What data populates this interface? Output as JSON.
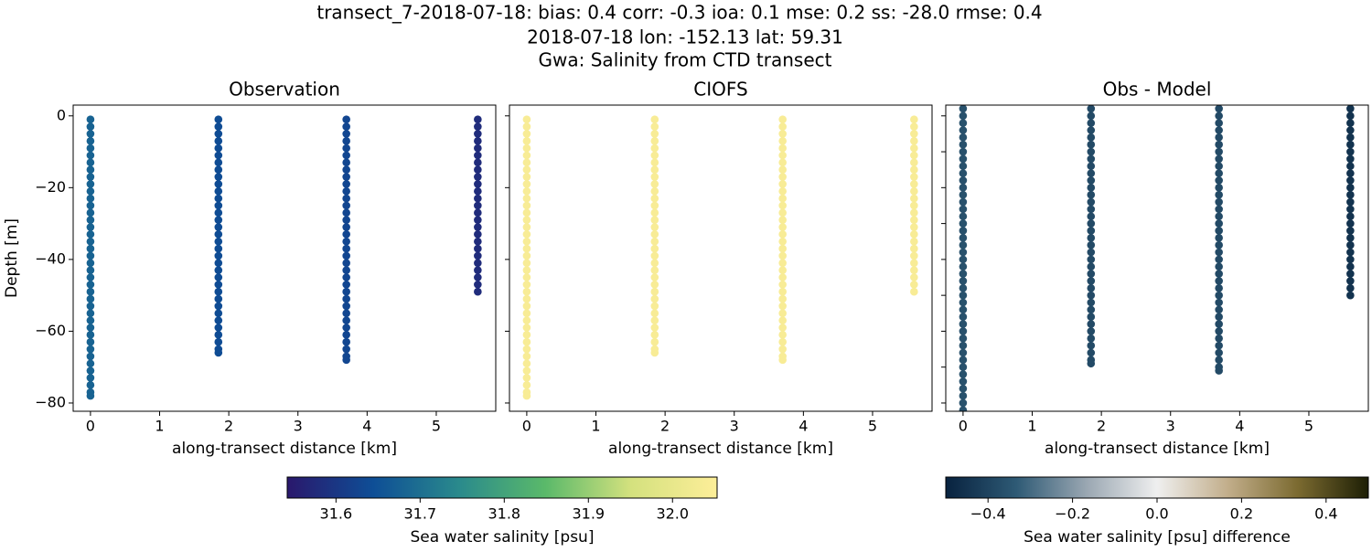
{
  "header": {
    "lines": [
      "transect_7-2018-07-18: bias: 0.4  corr: -0.3  ioa: 0.1  mse: 0.2  ss: -28.0  rmse: 0.4",
      "2018-07-18 lon: -152.13 lat: 59.31",
      "Gwa: Salinity from CTD transect"
    ]
  },
  "chart_data": [
    {
      "type": "scatter",
      "title": "Observation",
      "xlabel": "along-transect distance [km]",
      "ylabel": "Depth [m]",
      "xlim": [
        -0.25,
        5.86
      ],
      "ylim": [
        -82.3,
        3
      ],
      "xticks": [
        0,
        1,
        2,
        3,
        4,
        5
      ],
      "yticks": [
        {
          "value": -80,
          "label": "−80"
        },
        {
          "value": -60,
          "label": "−60"
        },
        {
          "value": -40,
          "label": "−40"
        },
        {
          "value": -20,
          "label": "−20"
        },
        0
      ],
      "ytick_labels": true,
      "clim": [
        31.542,
        32.053
      ],
      "colors": [
        "#2a186c",
        "#0e4e96",
        "#2a8a8c",
        "#5ab96a",
        "#d4e17e",
        "#fdee99"
      ],
      "series": [
        {
          "x": 0,
          "value": 31.68,
          "y": [
            -1,
            -3,
            -5,
            -7,
            -9,
            -11,
            -13,
            -15,
            -17,
            -19,
            -21,
            -23,
            -25,
            -27,
            -29,
            -31,
            -33,
            -35,
            -37,
            -39,
            -41,
            -43,
            -45,
            -47,
            -49,
            -51,
            -53,
            -55,
            -57,
            -59,
            -61,
            -63,
            -65,
            -67,
            -69,
            -71,
            -73,
            -75,
            -77,
            -78
          ]
        },
        {
          "x": 1.85,
          "value": 31.64,
          "y": [
            -1,
            -3,
            -5,
            -7,
            -9,
            -11,
            -13,
            -15,
            -17,
            -19,
            -21,
            -23,
            -25,
            -27,
            -29,
            -31,
            -33,
            -35,
            -37,
            -39,
            -41,
            -43,
            -45,
            -47,
            -49,
            -51,
            -53,
            -55,
            -57,
            -59,
            -61,
            -63,
            -65,
            -66
          ]
        },
        {
          "x": 3.7,
          "value": 31.63,
          "y": [
            -1,
            -3,
            -5,
            -7,
            -9,
            -11,
            -13,
            -15,
            -17,
            -19,
            -21,
            -23,
            -25,
            -27,
            -29,
            -31,
            -33,
            -35,
            -37,
            -39,
            -41,
            -43,
            -45,
            -47,
            -49,
            -51,
            -53,
            -55,
            -57,
            -59,
            -61,
            -63,
            -65,
            -67,
            -68
          ]
        },
        {
          "x": 5.6,
          "value": 31.58,
          "y": [
            -1,
            -3,
            -5,
            -7,
            -9,
            -11,
            -13,
            -15,
            -17,
            -19,
            -21,
            -23,
            -25,
            -27,
            -29,
            -31,
            -33,
            -35,
            -37,
            -39,
            -41,
            -43,
            -45,
            -47,
            -49
          ]
        }
      ]
    },
    {
      "type": "scatter",
      "title": "CIOFS",
      "xlabel": "along-transect distance [km]",
      "xlim": [
        -0.25,
        5.86
      ],
      "ylim": [
        -82.3,
        3
      ],
      "xticks": [
        0,
        1,
        2,
        3,
        4,
        5
      ],
      "yticks": [
        -80,
        -60,
        -40,
        -20,
        0
      ],
      "ytick_labels": false,
      "clim": [
        31.542,
        32.053
      ],
      "colors": [
        "#2a186c",
        "#0e4e96",
        "#2a8a8c",
        "#5ab96a",
        "#d4e17e",
        "#fdee99"
      ],
      "series": [
        {
          "x": 0,
          "value": 32.04,
          "y": [
            -1,
            -3,
            -5,
            -7,
            -9,
            -11,
            -13,
            -15,
            -17,
            -19,
            -21,
            -23,
            -25,
            -27,
            -29,
            -31,
            -33,
            -35,
            -37,
            -39,
            -41,
            -43,
            -45,
            -47,
            -49,
            -51,
            -53,
            -55,
            -57,
            -59,
            -61,
            -63,
            -65,
            -67,
            -69,
            -71,
            -73,
            -75,
            -77,
            -78
          ]
        },
        {
          "x": 1.85,
          "value": 32.04,
          "y": [
            -1,
            -3,
            -5,
            -7,
            -9,
            -11,
            -13,
            -15,
            -17,
            -19,
            -21,
            -23,
            -25,
            -27,
            -29,
            -31,
            -33,
            -35,
            -37,
            -39,
            -41,
            -43,
            -45,
            -47,
            -49,
            -51,
            -53,
            -55,
            -57,
            -59,
            -61,
            -63,
            -65,
            -66
          ]
        },
        {
          "x": 3.7,
          "value": 32.04,
          "y": [
            -1,
            -3,
            -5,
            -7,
            -9,
            -11,
            -13,
            -15,
            -17,
            -19,
            -21,
            -23,
            -25,
            -27,
            -29,
            -31,
            -33,
            -35,
            -37,
            -39,
            -41,
            -43,
            -45,
            -47,
            -49,
            -51,
            -53,
            -55,
            -57,
            -59,
            -61,
            -63,
            -65,
            -67,
            -68
          ]
        },
        {
          "x": 5.6,
          "value": 32.04,
          "y": [
            -1,
            -3,
            -5,
            -7,
            -9,
            -11,
            -13,
            -15,
            -17,
            -19,
            -21,
            -23,
            -25,
            -27,
            -29,
            -31,
            -33,
            -35,
            -37,
            -39,
            -41,
            -43,
            -45,
            -47,
            -49
          ]
        }
      ]
    },
    {
      "type": "scatter",
      "title": "Obs - Model",
      "xlabel": "along-transect distance [km]",
      "xlim": [
        -0.25,
        5.86
      ],
      "ylim": [
        -82.3,
        3
      ],
      "xticks": [
        0,
        1,
        2,
        3,
        4,
        5
      ],
      "yticks": [
        -80,
        -70,
        -60,
        -50,
        -40,
        -30,
        -20,
        -10,
        0
      ],
      "ytick_labels": false,
      "clim": [
        -0.5,
        0.5
      ],
      "colors": [
        "#08223f",
        "#2e5a75",
        "#9aa7b2",
        "#efefef",
        "#c2ae8b",
        "#7b6a30",
        "#1d1f05"
      ],
      "series": [
        {
          "x": 0,
          "value": -0.36,
          "y": [
            2,
            0,
            -2,
            -4,
            -6,
            -8,
            -10,
            -12,
            -14,
            -16,
            -18,
            -20,
            -22,
            -24,
            -26,
            -28,
            -30,
            -32,
            -34,
            -36,
            -38,
            -40,
            -42,
            -44,
            -46,
            -48,
            -50,
            -52,
            -54,
            -56,
            -58,
            -60,
            -62,
            -64,
            -66,
            -68,
            -70,
            -72,
            -74,
            -76,
            -78,
            -80,
            -82
          ]
        },
        {
          "x": 1.85,
          "value": -0.38,
          "y": [
            2,
            0,
            -2,
            -4,
            -6,
            -8,
            -10,
            -12,
            -14,
            -16,
            -18,
            -20,
            -22,
            -24,
            -26,
            -28,
            -30,
            -32,
            -34,
            -36,
            -38,
            -40,
            -42,
            -44,
            -46,
            -48,
            -50,
            -52,
            -54,
            -56,
            -58,
            -60,
            -62,
            -64,
            -66,
            -68,
            -69
          ]
        },
        {
          "x": 3.7,
          "value": -0.38,
          "y": [
            2,
            0,
            -2,
            -4,
            -6,
            -8,
            -10,
            -12,
            -14,
            -16,
            -18,
            -20,
            -22,
            -24,
            -26,
            -28,
            -30,
            -32,
            -34,
            -36,
            -38,
            -40,
            -42,
            -44,
            -46,
            -48,
            -50,
            -52,
            -54,
            -56,
            -58,
            -60,
            -62,
            -64,
            -66,
            -68,
            -70,
            -71
          ]
        },
        {
          "x": 5.6,
          "value": -0.45,
          "y": [
            2,
            0,
            -2,
            -4,
            -6,
            -8,
            -10,
            -12,
            -14,
            -16,
            -18,
            -20,
            -22,
            -24,
            -26,
            -28,
            -30,
            -32,
            -34,
            -36,
            -38,
            -40,
            -42,
            -44,
            -46,
            -48,
            -50
          ]
        }
      ]
    },
    {
      "type": "colorbar",
      "xlabel": "Sea water salinity [psu]",
      "xlim": [
        31.542,
        32.053
      ],
      "xticks": [
        31.6,
        31.7,
        31.8,
        31.9,
        {
          "value": 32.0,
          "label": "32.0"
        }
      ],
      "colors": [
        "#2a186c",
        "#0e4e96",
        "#2a8a8c",
        "#5ab96a",
        "#d4e17e",
        "#fdee99"
      ]
    },
    {
      "type": "colorbar",
      "xlabel": "Sea water salinity [psu] difference",
      "xlim": [
        -0.5,
        0.5
      ],
      "xticks": [
        {
          "value": -0.4,
          "label": "−0.4"
        },
        {
          "value": -0.2,
          "label": "−0.2"
        },
        {
          "value": 0,
          "label": "0.0"
        },
        0.2,
        0.4
      ],
      "colors": [
        "#08223f",
        "#2e5a75",
        "#9aa7b2",
        "#efefef",
        "#c2ae8b",
        "#7b6a30",
        "#1d1f05"
      ]
    }
  ]
}
